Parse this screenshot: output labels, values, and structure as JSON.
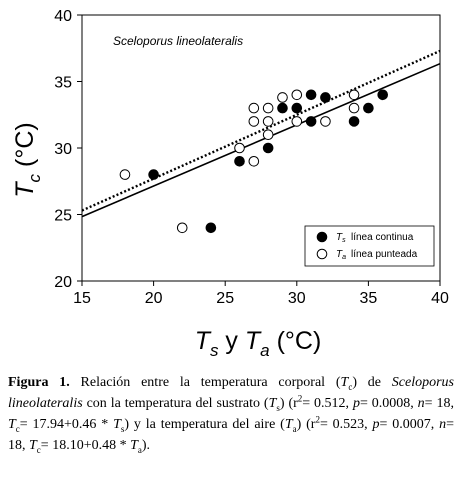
{
  "chart_data": {
    "type": "scatter",
    "annotation": "Sceloporus lineolateralis",
    "xlim": [
      15,
      40
    ],
    "ylim": [
      20,
      40
    ],
    "x_ticks": [
      15,
      20,
      25,
      30,
      35,
      40
    ],
    "y_ticks": [
      20,
      25,
      30,
      35,
      40
    ],
    "series": [
      {
        "name": "línea continua",
        "legend_symbol": "T_s",
        "marker": "filled-circle",
        "points": [
          {
            "x": 20,
            "y": 28
          },
          {
            "x": 24,
            "y": 24
          },
          {
            "x": 26,
            "y": 29
          },
          {
            "x": 28,
            "y": 30
          },
          {
            "x": 29,
            "y": 33
          },
          {
            "x": 30,
            "y": 33
          },
          {
            "x": 31,
            "y": 32
          },
          {
            "x": 31,
            "y": 34
          },
          {
            "x": 32,
            "y": 33.8
          },
          {
            "x": 34,
            "y": 32
          },
          {
            "x": 35,
            "y": 33
          },
          {
            "x": 36,
            "y": 34
          }
        ]
      },
      {
        "name": "línea punteada",
        "legend_symbol": "T_a",
        "marker": "open-circle",
        "points": [
          {
            "x": 18,
            "y": 28
          },
          {
            "x": 22,
            "y": 24
          },
          {
            "x": 26,
            "y": 30
          },
          {
            "x": 27,
            "y": 29
          },
          {
            "x": 27,
            "y": 32
          },
          {
            "x": 27,
            "y": 33
          },
          {
            "x": 28,
            "y": 31
          },
          {
            "x": 28,
            "y": 32
          },
          {
            "x": 28,
            "y": 33
          },
          {
            "x": 29,
            "y": 33.8
          },
          {
            "x": 30,
            "y": 32
          },
          {
            "x": 30,
            "y": 34
          },
          {
            "x": 32,
            "y": 32
          },
          {
            "x": 34,
            "y": 33
          },
          {
            "x": 34,
            "y": 34
          }
        ]
      }
    ],
    "fits": [
      {
        "series": "línea continua",
        "intercept": 17.94,
        "slope": 0.46,
        "style": "solid"
      },
      {
        "series": "línea punteada",
        "intercept": 18.1,
        "slope": 0.48,
        "style": "dotted"
      }
    ],
    "legend_position": "bottom-right",
    "grid": false
  },
  "caption": {
    "label": "Figura 1.",
    "text_1": " Relación entre la temperatura corporal (",
    "tc_main": "T",
    "tc_sub": "c",
    "text_2": ") de ",
    "species": "Sceloporus lineolateralis",
    "text_3": " con la temperatura del sustrato (",
    "ts_main": "T",
    "ts_sub": "s",
    "text_4": ") (r",
    "r_sup": "2",
    "text_5": "= 0.512, ",
    "p_label": "p",
    "text_6": "= 0.0008, ",
    "n_label": "n",
    "text_7": "= 18, ",
    "eq1_main": "T",
    "eq1_sub": "c",
    "text_8": "= 17.94+0.46 * ",
    "eq1_x_main": "T",
    "eq1_x_sub": "s",
    "text_9": ") y la temperatura del aire (",
    "ta_main": "T",
    "ta_sub": "a",
    "text_10": ") (r",
    "r2_sup": "2",
    "text_11": "= 0.523, ",
    "p2_label": "p",
    "text_12": "= 0.0007, ",
    "n2_label": "n",
    "text_13": "= 18, ",
    "eq2_main": "T",
    "eq2_sub": "c",
    "text_14": "= 18.10+0.48 * ",
    "eq2_x_main": "T",
    "eq2_x_sub": "a",
    "text_15": ")."
  },
  "colors": {
    "axis": "#000000",
    "marker": "#000000",
    "background": "#ffffff"
  }
}
